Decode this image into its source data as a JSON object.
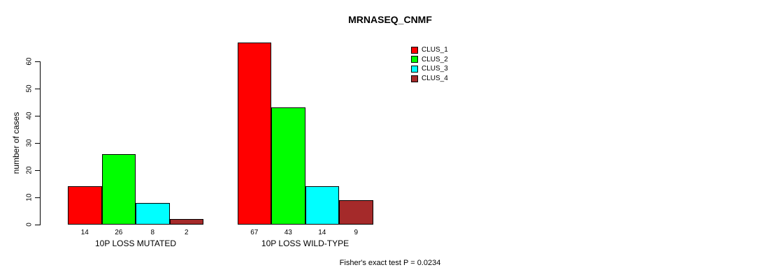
{
  "title": "MRNASEQ_CNMF",
  "y_axis": {
    "label": "number of cases",
    "ticks": [
      0,
      10,
      20,
      30,
      40,
      50,
      60
    ]
  },
  "groups": [
    "10P LOSS MUTATED",
    "10P LOSS WILD-TYPE"
  ],
  "legend": {
    "items": [
      {
        "label": "CLUS_1",
        "color": "#FF0000"
      },
      {
        "label": "CLUS_2",
        "color": "#00FF00"
      },
      {
        "label": "CLUS_3",
        "color": "#00FFFF"
      },
      {
        "label": "CLUS_4",
        "color": "#A52A2A"
      }
    ]
  },
  "footer": "Fisher's exact test P = 0.0234",
  "chart_data": {
    "type": "bar",
    "title": "MRNASEQ_CNMF",
    "xlabel": "",
    "ylabel": "number of cases",
    "ylim": [
      0,
      60
    ],
    "yticks": [
      0,
      10,
      20,
      30,
      40,
      50,
      60
    ],
    "categories": [
      "10P LOSS MUTATED",
      "10P LOSS WILD-TYPE"
    ],
    "series": [
      {
        "name": "CLUS_1",
        "color": "#FF0000",
        "values": [
          14,
          67
        ]
      },
      {
        "name": "CLUS_2",
        "color": "#00FF00",
        "values": [
          26,
          43
        ]
      },
      {
        "name": "CLUS_3",
        "color": "#00FFFF",
        "values": [
          8,
          14
        ]
      },
      {
        "name": "CLUS_4",
        "color": "#A52A2A",
        "values": [
          2,
          9
        ]
      }
    ],
    "bar_value_labels": [
      [
        14,
        26,
        8,
        2
      ],
      [
        67,
        43,
        14,
        9
      ]
    ],
    "legend_position": "top-right",
    "grid": false,
    "annotation": "Fisher's exact test P = 0.0234"
  }
}
